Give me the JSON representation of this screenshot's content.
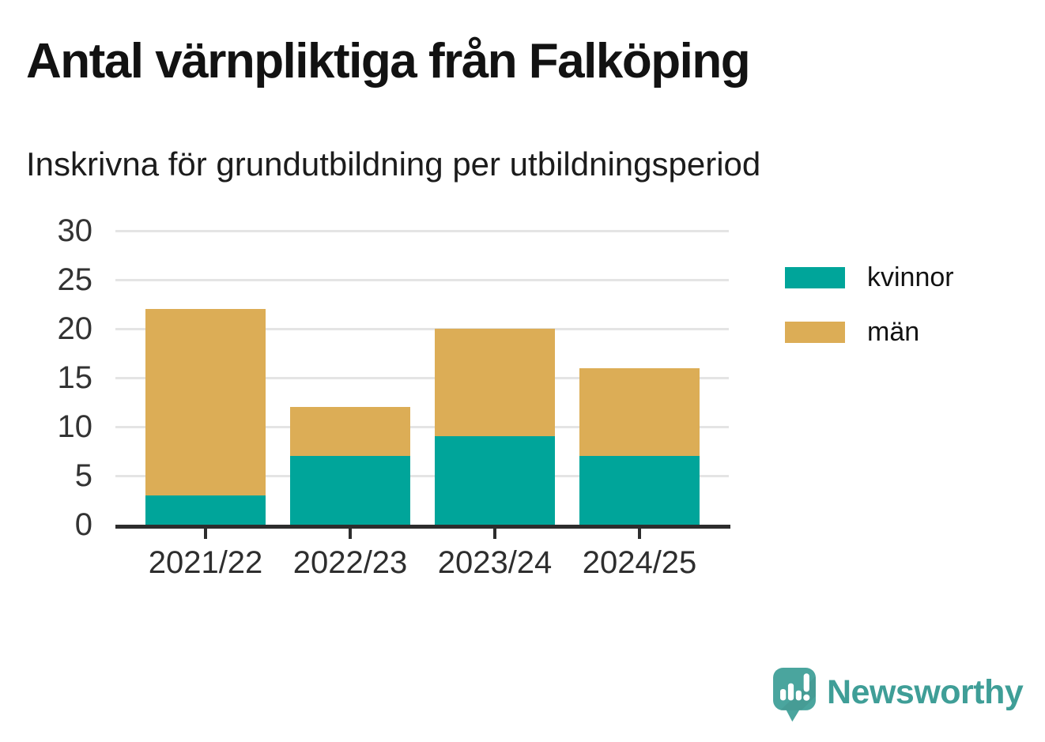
{
  "title": "Antal värnpliktiga från Falköping",
  "subtitle": "Inskrivna för grundutbildning per utbildningsperiod",
  "colors": {
    "kvinnor": "#00a59a",
    "man": "#dcad56",
    "axis": "#2d2d2d",
    "grid": "#e4e4e4",
    "title_text": "#121212",
    "tick_text": "#333333",
    "brand_icon": "#4aa59e",
    "brand_text": "#3f9e97"
  },
  "chart_data": {
    "type": "bar",
    "stacked": true,
    "title": "Antal värnpliktiga från Falköping",
    "subtitle": "Inskrivna för grundutbildning per utbildningsperiod",
    "categories": [
      "2021/22",
      "2022/23",
      "2023/24",
      "2024/25"
    ],
    "series": [
      {
        "name": "kvinnor",
        "color": "#00a59a",
        "values": [
          3,
          7,
          9,
          7
        ]
      },
      {
        "name": "män",
        "color": "#dcad56",
        "values": [
          19,
          5,
          11,
          9
        ]
      }
    ],
    "totals": [
      22,
      12,
      20,
      16
    ],
    "xlabel": "",
    "ylabel": "",
    "ylim": [
      0,
      30
    ],
    "yticks": [
      0,
      5,
      10,
      15,
      20,
      25,
      30
    ],
    "grid": "horizontal-only",
    "legend_position": "right"
  },
  "legend": {
    "items": [
      {
        "label": "kvinnor",
        "color": "#00a59a"
      },
      {
        "label": "män",
        "color": "#dcad56"
      }
    ]
  },
  "branding": {
    "wordmark": "Newsworthy",
    "icon": "newsworthy-speech-bubble-chart-icon"
  }
}
